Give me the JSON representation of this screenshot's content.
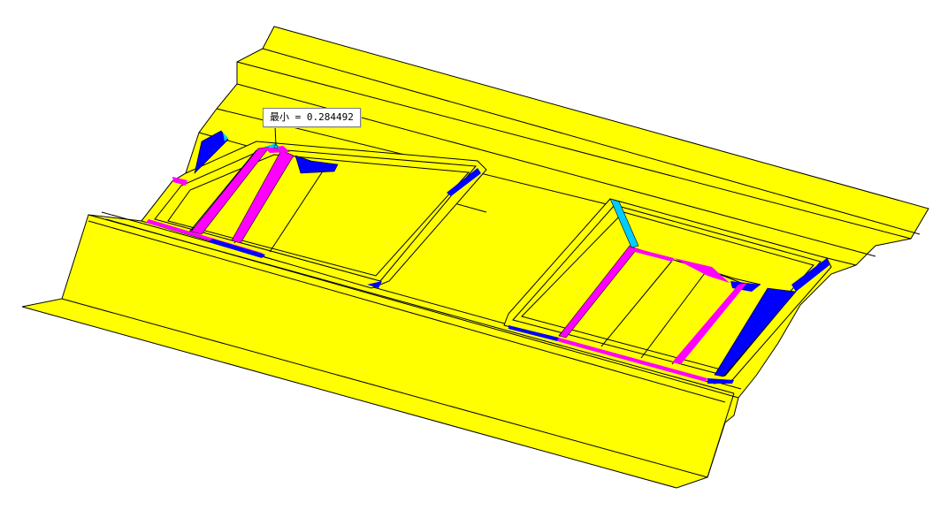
{
  "viewport": {
    "annotation": {
      "min_label": "最小 = 0.284492"
    },
    "colors": {
      "background": "#ffffff",
      "surface": "#ffff00",
      "edge": "#000000",
      "thin_zone": "#ff00ff",
      "thick_zone": "#0000ff",
      "transition_zone": "#00ccff"
    }
  }
}
